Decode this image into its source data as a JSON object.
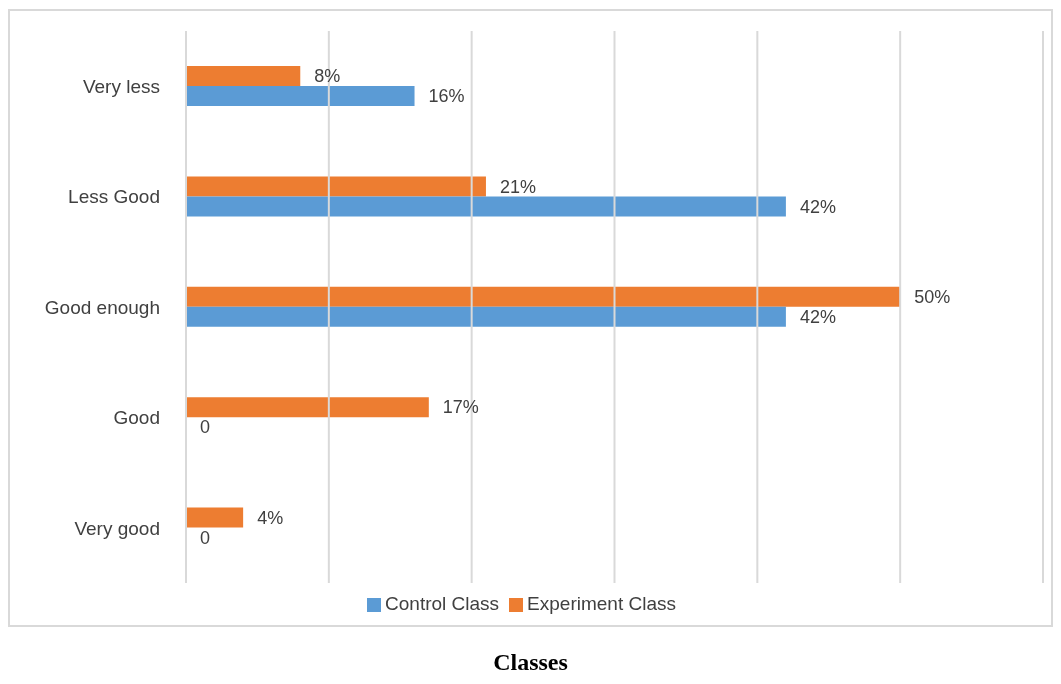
{
  "chart_data": {
    "type": "bar",
    "orientation": "horizontal",
    "xlabel": "Classes",
    "categories": [
      "Very less",
      "Less Good",
      "Good enough",
      "Good",
      "Very good"
    ],
    "series": [
      {
        "name": "Experiment Class",
        "color": "#ed7d31",
        "values": [
          8,
          21,
          50,
          17,
          4
        ],
        "value_labels": [
          "8%",
          "21%",
          "50%",
          "17%",
          "4%"
        ]
      },
      {
        "name": "Control Class",
        "color": "#5b9bd5",
        "values": [
          16,
          42,
          42,
          0,
          0
        ],
        "value_labels": [
          "16%",
          "42%",
          "42%",
          "0",
          "0"
        ]
      }
    ],
    "xlim": [
      0,
      60
    ],
    "xticks": [
      {
        "value": 0,
        "label": null
      },
      {
        "value": 10,
        "label": null
      },
      {
        "value": 20,
        "label": null
      },
      {
        "value": 30,
        "label": null
      },
      {
        "value": 40,
        "label": null
      },
      {
        "value": 50,
        "label": null
      },
      {
        "value": 60,
        "label": null
      }
    ],
    "tick_labels": "y",
    "grid": "x",
    "legend": "bottom"
  }
}
